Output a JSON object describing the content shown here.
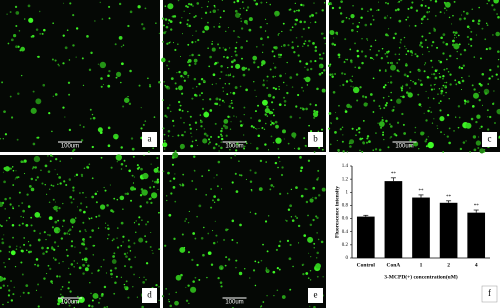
{
  "panels": [
    {
      "label": "a",
      "scale": "100um"
    },
    {
      "label": "b",
      "scale": "100um"
    },
    {
      "label": "c",
      "scale": "100um"
    },
    {
      "label": "d",
      "scale": "100um"
    },
    {
      "label": "e",
      "scale": "100um"
    }
  ],
  "chart_data": {
    "type": "bar",
    "panel_label": "f",
    "ylabel": "Fluorescence intensity",
    "xlabel": "3-MCPD(+) concentration(uM)",
    "categories": [
      "Control",
      "ConA",
      "1",
      "2",
      "4"
    ],
    "values": [
      0.63,
      1.17,
      0.92,
      0.84,
      0.69
    ],
    "errors": [
      0.02,
      0.05,
      0.04,
      0.03,
      0.04
    ],
    "value_annotations": [
      null,
      "**",
      "**",
      "**",
      "**"
    ],
    "color": "#000000",
    "ylim": [
      0,
      1.4
    ],
    "yticks": [
      0,
      0.2,
      0.4,
      0.6,
      0.8,
      1,
      1.2,
      1.4
    ]
  }
}
